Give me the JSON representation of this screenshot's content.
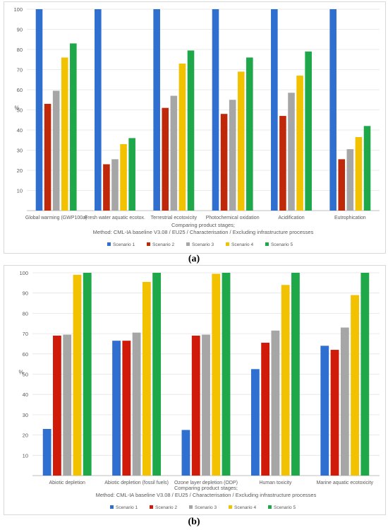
{
  "panels": [
    {
      "caption": "(a)"
    },
    {
      "caption": "(b)"
    }
  ],
  "chart_data": [
    {
      "type": "bar",
      "ylabel": "%",
      "xlabel": "Comparing product stages;",
      "xlabel_line2": "Method: CML-IA baseline V3.08 / EU25 / Characterisation / Excluding infrastructure processes",
      "ylim": [
        0,
        100
      ],
      "yticks": [
        10,
        20,
        30,
        40,
        50,
        60,
        70,
        80,
        90,
        100
      ],
      "grid": true,
      "legend_position": "bottom",
      "categories": [
        "Global warming (GWP100a)",
        "Fresh water aquatic ecotox.",
        "Terrestrial ecotoxicity",
        "Photochemical oxidation",
        "Acidification",
        "Eutrophication"
      ],
      "series": [
        {
          "name": "Scenario 1",
          "color": "#2e6fd0",
          "values": [
            100,
            100,
            100,
            100,
            100,
            100
          ]
        },
        {
          "name": "Scenario 2",
          "color": "#c0280a",
          "values": [
            53,
            23,
            51,
            48,
            47,
            25.5
          ]
        },
        {
          "name": "Scenario 3",
          "color": "#a6a6a6",
          "values": [
            59.5,
            25.5,
            57,
            55,
            58.5,
            30.5
          ]
        },
        {
          "name": "Scenario 4",
          "color": "#f2c200",
          "values": [
            76,
            33,
            73,
            69,
            67,
            36.5
          ]
        },
        {
          "name": "Scenario 5",
          "color": "#1ea84a",
          "values": [
            83,
            36,
            79.5,
            76,
            79,
            42
          ]
        }
      ]
    },
    {
      "type": "bar",
      "ylabel": "%",
      "xlabel": "Comparing product stages;",
      "xlabel_line2": "Method: CML-IA baseline V3.08 / EU25 / Characterisation / Excluding infrastructure processes",
      "ylim": [
        0,
        100
      ],
      "yticks": [
        10,
        20,
        30,
        40,
        50,
        60,
        70,
        80,
        90,
        100
      ],
      "grid": true,
      "legend_position": "bottom",
      "categories": [
        "Abiotic depletion",
        "Abiotic depletion (fossil fuels)",
        "Ozone layer depletion (ODP)",
        "Human toxicity",
        "Marine aquatic ecotoxicity"
      ],
      "series": [
        {
          "name": "Scenario 1",
          "color": "#2e6fd0",
          "values": [
            23,
            66.5,
            22.5,
            52.5,
            64
          ]
        },
        {
          "name": "Scenario 2",
          "color": "#d01a0a",
          "values": [
            69,
            66.5,
            69,
            65.5,
            62
          ]
        },
        {
          "name": "Scenario 3",
          "color": "#a6a6a6",
          "values": [
            69.5,
            70.5,
            69.5,
            71.5,
            73
          ]
        },
        {
          "name": "Scenario 4",
          "color": "#f2c200",
          "values": [
            99,
            95.5,
            99.5,
            94,
            89
          ]
        },
        {
          "name": "Scenario 5",
          "color": "#1ea84a",
          "values": [
            100,
            100,
            100,
            100,
            100
          ]
        }
      ]
    }
  ]
}
